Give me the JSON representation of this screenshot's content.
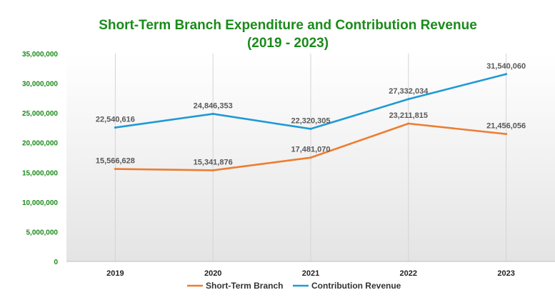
{
  "chart_data": {
    "type": "line",
    "title": [
      "Short-Term Branch Expenditure and Contribution Revenue",
      "(2019 - 2023)"
    ],
    "xlabel": "",
    "ylabel": "",
    "categories": [
      "2019",
      "2020",
      "2021",
      "2022",
      "2023"
    ],
    "ylim": [
      0,
      35000000
    ],
    "yticks": [
      "0",
      "5,000,000",
      "10,000,000",
      "15,000,000",
      "20,000,000",
      "25,000,000",
      "30,000,000",
      "35,000,000"
    ],
    "ytick_values": [
      0,
      5000000,
      10000000,
      15000000,
      20000000,
      25000000,
      30000000,
      35000000
    ],
    "grid": true,
    "legend_position": "bottom",
    "series": [
      {
        "name": "Short-Term Branch",
        "color": "#ed7d31",
        "values": [
          15566628,
          15341876,
          17481070,
          23211815,
          21456056
        ],
        "labels": [
          "15,566,628",
          "15,341,876",
          "17,481,070",
          "23,211,815",
          "21,456,056"
        ]
      },
      {
        "name": "Contribution Revenue",
        "color": "#1f9ad6",
        "values": [
          22540616,
          24846353,
          22320305,
          27332034,
          31540060
        ],
        "labels": [
          "22,540,616",
          "24,846,353",
          "22,320,305",
          "27,332,034",
          "31,540,060"
        ]
      }
    ]
  }
}
